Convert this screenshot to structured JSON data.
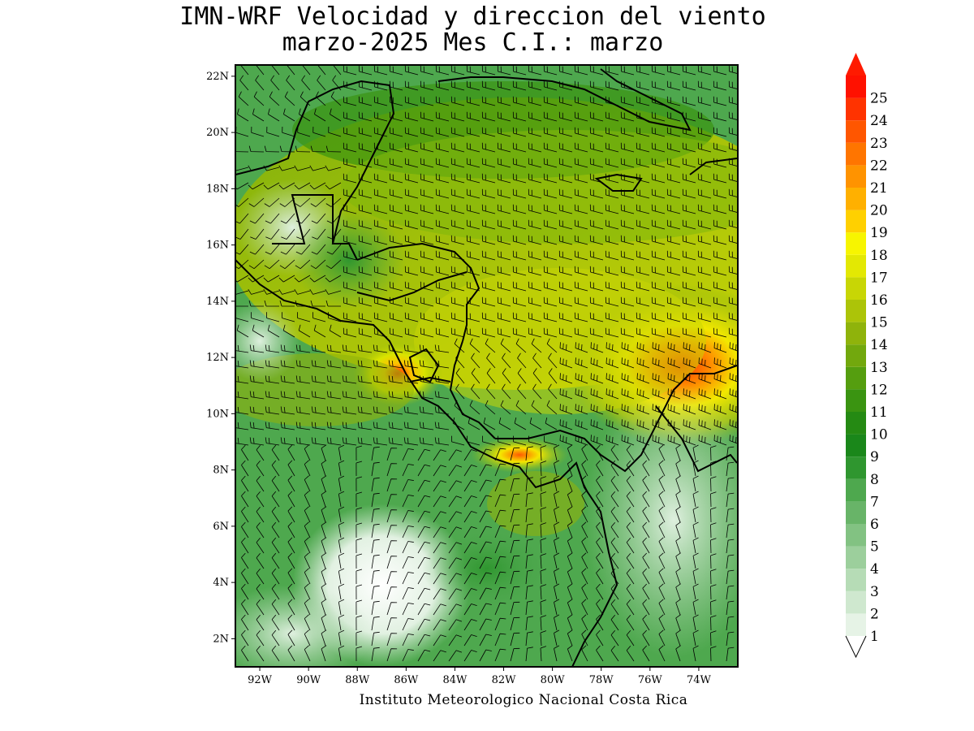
{
  "title": {
    "line1": "IMN-WRF Velocidad y direccion del viento",
    "line2": "marzo-2025 Mes C.I.: marzo"
  },
  "credit": "Instituto Meteorologico Nacional Costa Rica",
  "map": {
    "lat_labels": [
      "22N",
      "20N",
      "18N",
      "16N",
      "14N",
      "12N",
      "10N",
      "8N",
      "6N",
      "4N",
      "2N"
    ],
    "lat_values": [
      22,
      20,
      18,
      16,
      14,
      12,
      10,
      8,
      6,
      4,
      2
    ],
    "lon_labels": [
      "92W",
      "90W",
      "88W",
      "86W",
      "84W",
      "82W",
      "80W",
      "78W",
      "76W",
      "74W"
    ],
    "lon_values": [
      -92,
      -90,
      -88,
      -86,
      -84,
      -82,
      -80,
      -78,
      -76,
      -74
    ],
    "lat_range": [
      1.0,
      22.4
    ],
    "lon_range": [
      -93.0,
      -72.4
    ],
    "windspeed_max_region": "Caribbean off northern Colombia",
    "colorbar": {
      "labels": [
        "1",
        "2",
        "3",
        "4",
        "5",
        "6",
        "7",
        "8",
        "9",
        "10",
        "11",
        "12",
        "13",
        "14",
        "15",
        "16",
        "17",
        "18",
        "19",
        "20",
        "21",
        "22",
        "23",
        "24",
        "25"
      ],
      "colors": [
        "#e6f3e6",
        "#cfe8cf",
        "#b6dcb6",
        "#9ccf9c",
        "#82c282",
        "#68b468",
        "#4ea84e",
        "#2f962f",
        "#1a871a",
        "#258a13",
        "#3a9411",
        "#559e0f",
        "#72a80d",
        "#8fb30b",
        "#acc408",
        "#c8d605",
        "#e3e803",
        "#f7f500",
        "#ffd000",
        "#ffb000",
        "#ff9300",
        "#ff7500",
        "#ff5600",
        "#ff3300",
        "#ff1100"
      ],
      "arrow_color": "#ff1a00"
    }
  }
}
